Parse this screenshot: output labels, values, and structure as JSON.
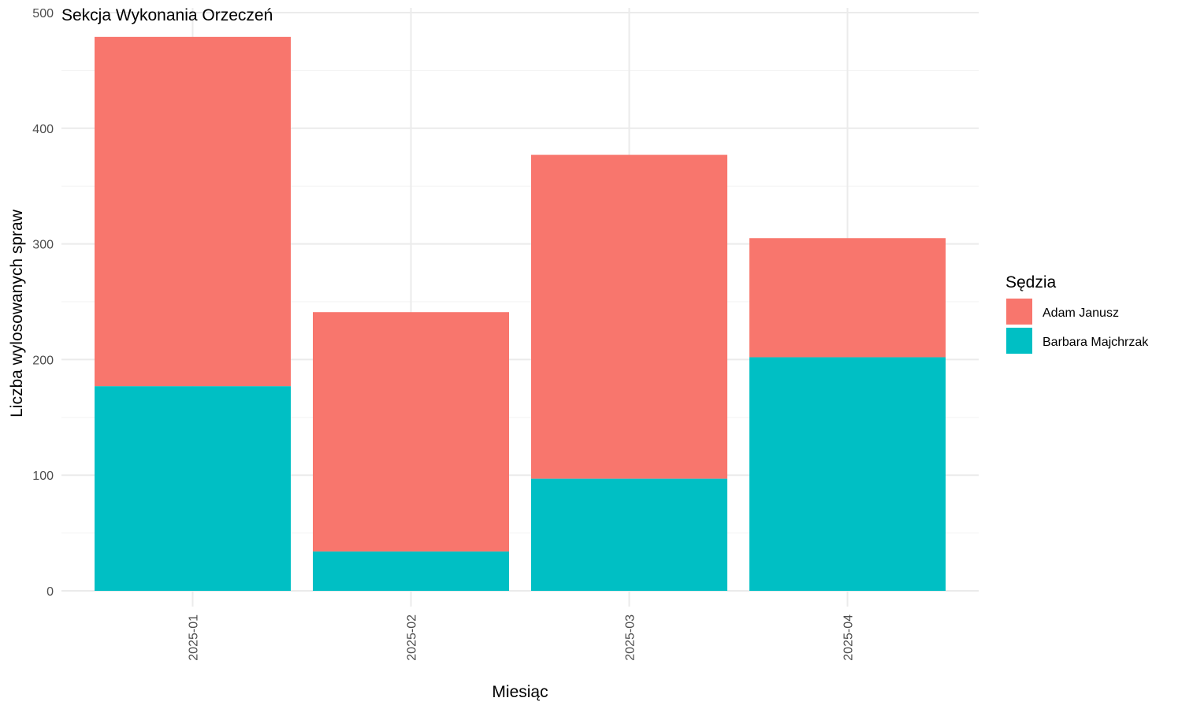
{
  "chart_data": {
    "type": "bar",
    "stacked": true,
    "title": "Sekcja Wykonania Orzeczeń",
    "xlabel": "Miesiąc",
    "ylabel": "Liczba wylosowanych spraw",
    "categories": [
      "2025-01",
      "2025-02",
      "2025-03",
      "2025-04"
    ],
    "series": [
      {
        "name": "Barbara Majchrzak",
        "color": "#00BFC4",
        "values": [
          177,
          34,
          97,
          202
        ]
      },
      {
        "name": "Adam Janusz",
        "color": "#F8766D",
        "values": [
          302,
          207,
          280,
          103
        ]
      }
    ],
    "ylim": [
      0,
      500
    ],
    "yticks": [
      0,
      100,
      200,
      300,
      400,
      500
    ],
    "grid": true,
    "legend": {
      "title": "Sędzia",
      "position": "right",
      "items": [
        {
          "name": "Adam Janusz",
          "color": "#F8766D"
        },
        {
          "name": "Barbara Majchrzak",
          "color": "#00BFC4"
        }
      ]
    }
  }
}
